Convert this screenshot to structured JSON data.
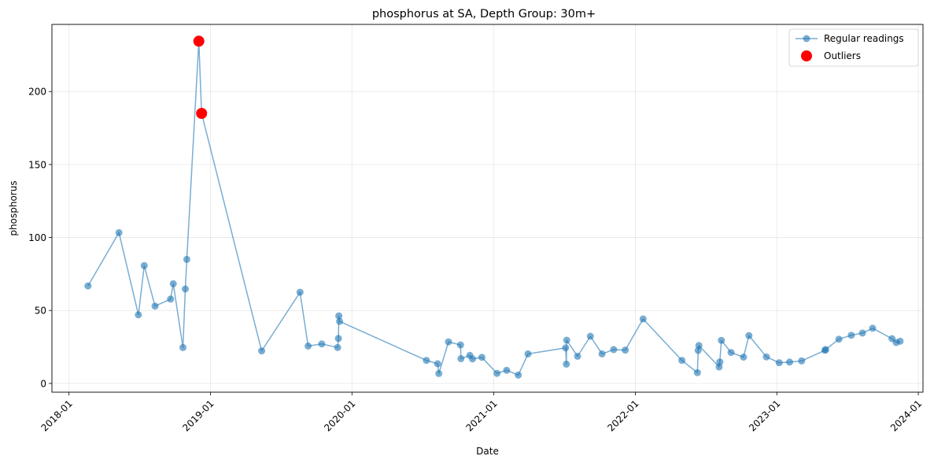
{
  "chart_data": {
    "type": "line",
    "title": "phosphorus at SA, Depth Group: 30m+",
    "xlabel": "Date",
    "ylabel": "phosphorus",
    "x_axis": "date",
    "xlim": [
      "2017-11-18",
      "2024-01-13"
    ],
    "ylim": [
      -6,
      246
    ],
    "x_ticks": [
      "2018-01-01",
      "2019-01-01",
      "2020-01-01",
      "2021-01-01",
      "2022-01-01",
      "2023-01-01",
      "2024-01-01"
    ],
    "x_tick_labels": [
      "2018-01",
      "2019-01",
      "2020-01",
      "2021-01",
      "2022-01",
      "2023-01",
      "2024-01"
    ],
    "y_ticks": [
      0,
      50,
      100,
      150,
      200
    ],
    "y_tick_labels": [
      "0",
      "50",
      "100",
      "150",
      "200"
    ],
    "grid": true,
    "legend_position": "top-right",
    "colors": {
      "regular": "#1f77b4",
      "outlier": "#ff0000"
    },
    "series": [
      {
        "name": "Regular readings",
        "style": "line-marker",
        "x": [
          "2018-02-19",
          "2018-05-10",
          "2018-06-29",
          "2018-07-14",
          "2018-08-11",
          "2018-09-20",
          "2018-09-27",
          "2018-10-22",
          "2018-10-28",
          "2018-11-01",
          "2018-12-02",
          "2018-12-09",
          "2019-05-13",
          "2019-08-20",
          "2019-09-10",
          "2019-10-15",
          "2019-11-25",
          "2019-11-27",
          "2019-11-28",
          "2019-11-30",
          "2020-07-11",
          "2020-08-09",
          "2020-08-12",
          "2020-09-06",
          "2020-10-07",
          "2020-10-08",
          "2020-10-31",
          "2020-11-07",
          "2020-12-01",
          "2021-01-09",
          "2021-02-03",
          "2021-03-05",
          "2021-03-30",
          "2021-07-05",
          "2021-07-07",
          "2021-07-08",
          "2021-08-05",
          "2021-09-07",
          "2021-10-07",
          "2021-11-06",
          "2021-12-06",
          "2022-01-21",
          "2022-05-01",
          "2022-06-10",
          "2022-06-12",
          "2022-06-14",
          "2022-08-05",
          "2022-08-07",
          "2022-08-11",
          "2022-09-05",
          "2022-10-07",
          "2022-10-21",
          "2022-12-05",
          "2023-01-07",
          "2023-02-03",
          "2023-03-06",
          "2023-05-05",
          "2023-05-07",
          "2023-06-10",
          "2023-07-12",
          "2023-08-10",
          "2023-09-05",
          "2023-10-25",
          "2023-11-05",
          "2023-11-15"
        ],
        "values": [
          66.8,
          103.3,
          47,
          80.7,
          53,
          57.8,
          68.3,
          24.6,
          64.7,
          85,
          234.5,
          185,
          22.3,
          62.5,
          25.6,
          27.1,
          24.6,
          30.8,
          46.3,
          42.5,
          15.8,
          13.5,
          6.8,
          28.5,
          26.4,
          17,
          19.2,
          16.8,
          17.9,
          6.9,
          9,
          5.7,
          20.2,
          24.4,
          13.2,
          29.6,
          18.6,
          32.3,
          20.2,
          23.2,
          22.8,
          44.2,
          15.8,
          7.4,
          22.6,
          26,
          11.3,
          14.7,
          29.5,
          21.2,
          18,
          32.8,
          18.2,
          14.2,
          14.6,
          15.4,
          22.7,
          23.2,
          30.3,
          33,
          34.5,
          37.8,
          30.7,
          28,
          28.9
        ]
      },
      {
        "name": "Outliers",
        "style": "marker",
        "x": [
          "2018-12-02",
          "2018-12-09"
        ],
        "values": [
          234.5,
          185
        ]
      }
    ]
  }
}
